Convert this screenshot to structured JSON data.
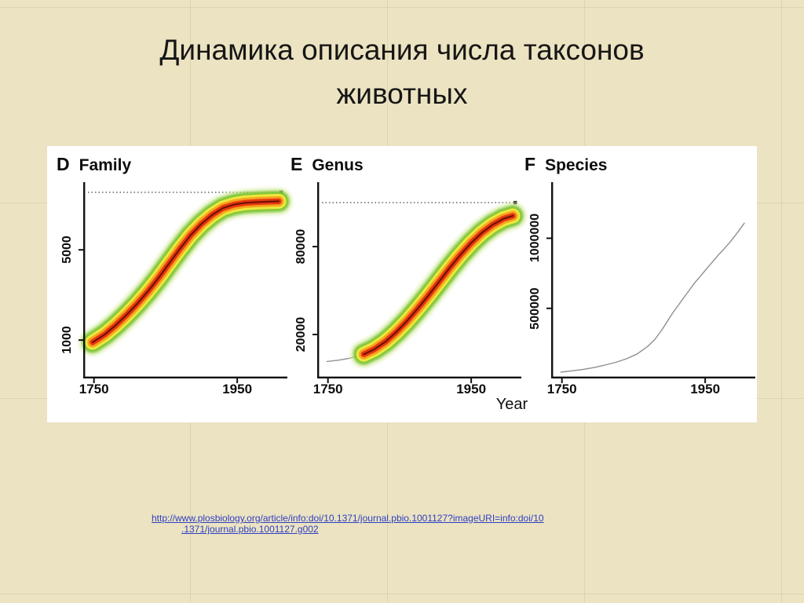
{
  "slide": {
    "title_line1": "Динамика описания числа таксонов",
    "title_line2": "животных",
    "source_link_line1": "http://www.plosbiology.org/article/info:doi/10.1371/journal.pbio.1001127?imageURI=info:doi/10",
    "source_link_line2": ".1371/journal.pbio.1001127.g002"
  },
  "figure": {
    "xlabel": "Year"
  },
  "colors": {
    "background": "#ebe3c1",
    "panel": "#ffffff",
    "link": "#2e3ec2",
    "axis": "#111111",
    "density_outer_green": "#d8eda2",
    "density_green": "#7ac32f",
    "density_yellow": "#ece93c",
    "density_orange": "#f6a31f",
    "density_red": "#e8380f",
    "density_core": "#6d1204",
    "thin_line_gray": "#8f8f8f"
  },
  "chart_data": [
    {
      "panel": "D",
      "title": "Family",
      "type": "line",
      "render": "density-band",
      "xlabel": "Year",
      "x_range": [
        1735,
        2020
      ],
      "y_range": [
        -700,
        8000
      ],
      "x_ticks": [
        {
          "label": "1750",
          "value": 1750
        },
        {
          "label": "1950",
          "value": 1950
        }
      ],
      "y_ticks": [
        {
          "label": "5000",
          "value": 5000
        },
        {
          "label": "1000",
          "value": 1000
        }
      ],
      "reference_line_value": 7550,
      "series": [
        {
          "name": "Family",
          "points": [
            [
              1748,
              900
            ],
            [
              1765,
              1250
            ],
            [
              1780,
              1650
            ],
            [
              1795,
              2100
            ],
            [
              1810,
              2600
            ],
            [
              1825,
              3150
            ],
            [
              1840,
              3750
            ],
            [
              1855,
              4400
            ],
            [
              1870,
              5050
            ],
            [
              1885,
              5650
            ],
            [
              1900,
              6150
            ],
            [
              1915,
              6550
            ],
            [
              1930,
              6850
            ],
            [
              1945,
              7000
            ],
            [
              1960,
              7080
            ],
            [
              1980,
              7120
            ],
            [
              2008,
              7150
            ]
          ]
        }
      ]
    },
    {
      "panel": "E",
      "title": "Genus",
      "type": "line",
      "render": "density-band",
      "lead_line": true,
      "band_start_x": 1800,
      "xlabel": "Year",
      "x_range": [
        1735,
        2020
      ],
      "y_range": [
        -10000,
        124000
      ],
      "x_ticks": [
        {
          "label": "1750",
          "value": 1750
        },
        {
          "label": "1950",
          "value": 1950
        }
      ],
      "y_ticks": [
        {
          "label": "80000",
          "value": 80000
        },
        {
          "label": "20000",
          "value": 20000
        }
      ],
      "reference_line_value": 110000,
      "series": [
        {
          "name": "Genus",
          "points": [
            [
              1748,
              1500
            ],
            [
              1765,
              2500
            ],
            [
              1780,
              3800
            ],
            [
              1790,
              5000
            ],
            [
              1800,
              6500
            ],
            [
              1815,
              10000
            ],
            [
              1830,
              15000
            ],
            [
              1845,
              21500
            ],
            [
              1860,
              29000
            ],
            [
              1875,
              37500
            ],
            [
              1890,
              46500
            ],
            [
              1905,
              56000
            ],
            [
              1920,
              65500
            ],
            [
              1935,
              74500
            ],
            [
              1950,
              82500
            ],
            [
              1965,
              89500
            ],
            [
              1980,
              95000
            ],
            [
              1995,
              99000
            ],
            [
              2008,
              101000
            ]
          ]
        }
      ]
    },
    {
      "panel": "F",
      "title": "Species",
      "type": "line",
      "render": "thin-line",
      "xlabel": "Year",
      "x_range": [
        1735,
        2020
      ],
      "y_range": [
        0,
        1400000
      ],
      "x_ticks": [
        {
          "label": "1750",
          "value": 1750
        },
        {
          "label": "1950",
          "value": 1950
        }
      ],
      "y_ticks": [
        {
          "label": "1000000",
          "value": 1000000
        },
        {
          "label": "500000",
          "value": 500000
        }
      ],
      "series": [
        {
          "name": "Species",
          "points": [
            [
              1748,
              45000
            ],
            [
              1765,
              55000
            ],
            [
              1780,
              65000
            ],
            [
              1795,
              78000
            ],
            [
              1810,
              95000
            ],
            [
              1825,
              115000
            ],
            [
              1840,
              140000
            ],
            [
              1855,
              175000
            ],
            [
              1870,
              230000
            ],
            [
              1880,
              280000
            ],
            [
              1890,
              350000
            ],
            [
              1900,
              430000
            ],
            [
              1905,
              470000
            ],
            [
              1915,
              540000
            ],
            [
              1925,
              610000
            ],
            [
              1935,
              680000
            ],
            [
              1945,
              740000
            ],
            [
              1950,
              770000
            ],
            [
              1955,
              800000
            ],
            [
              1965,
              860000
            ],
            [
              1970,
              890000
            ],
            [
              1975,
              915000
            ],
            [
              1985,
              975000
            ],
            [
              1995,
              1040000
            ],
            [
              2005,
              1110000
            ]
          ]
        }
      ]
    }
  ]
}
